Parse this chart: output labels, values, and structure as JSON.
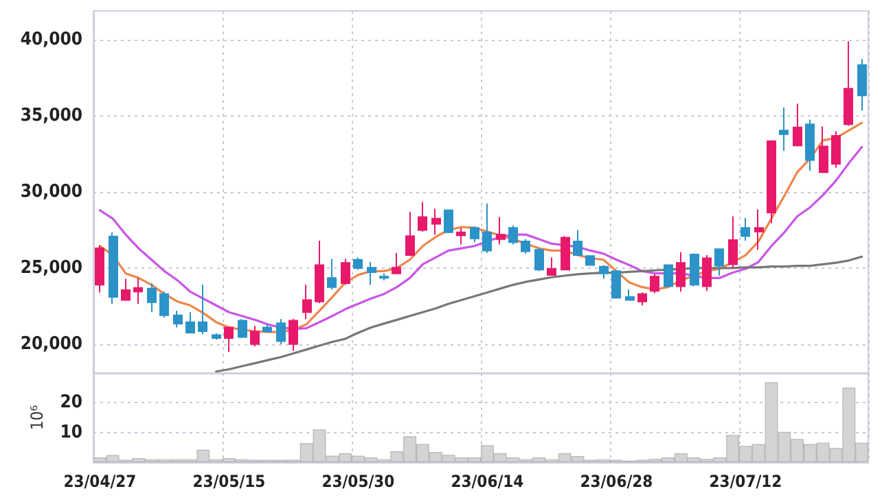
{
  "chart_data": [
    {
      "type": "candlestick",
      "categories": [
        null,
        null,
        null,
        null,
        null,
        null,
        null,
        null,
        null,
        null,
        null,
        null,
        null,
        null,
        null,
        null,
        null,
        null,
        null,
        null,
        null,
        null,
        null,
        null,
        null,
        null,
        null,
        null,
        null,
        null,
        null,
        null,
        null,
        null,
        null,
        null,
        null,
        null,
        null,
        null,
        null,
        null,
        null,
        null,
        null,
        null,
        null,
        null,
        null,
        null,
        null,
        null,
        null,
        null,
        null,
        null,
        null,
        null,
        null,
        null
      ],
      "ohlc": [
        [
          23900,
          26500,
          23400,
          26300
        ],
        [
          27080,
          27350,
          22650,
          23100
        ],
        [
          22900,
          24300,
          22900,
          23550
        ],
        [
          23450,
          24350,
          22650,
          23700
        ],
        [
          23650,
          24000,
          22100,
          22750
        ],
        [
          23300,
          23450,
          21750,
          21900
        ],
        [
          21900,
          22200,
          21100,
          21350
        ],
        [
          21450,
          22100,
          20700,
          20750
        ],
        [
          21450,
          23900,
          20650,
          20850
        ],
        [
          20600,
          20700,
          20300,
          20400
        ],
        [
          20400,
          21100,
          19500,
          21100
        ],
        [
          21550,
          21650,
          20400,
          20470
        ],
        [
          20000,
          21200,
          19850,
          20830
        ],
        [
          21100,
          21300,
          20800,
          20830
        ],
        [
          21380,
          21650,
          20000,
          20200
        ],
        [
          20000,
          21650,
          19550,
          21550
        ],
        [
          22100,
          23900,
          21650,
          22900
        ],
        [
          22800,
          26800,
          22700,
          25200
        ],
        [
          24350,
          25600,
          23600,
          23750
        ],
        [
          24000,
          25600,
          23900,
          25350
        ],
        [
          25550,
          25700,
          24900,
          25000
        ],
        [
          25030,
          25400,
          23900,
          24730
        ],
        [
          24450,
          24650,
          24200,
          24350
        ],
        [
          24650,
          26000,
          24600,
          25030
        ],
        [
          25850,
          28700,
          25800,
          27100
        ],
        [
          27500,
          29350,
          27400,
          28350
        ],
        [
          27900,
          28900,
          27200,
          28250
        ],
        [
          28800,
          28800,
          27300,
          27350
        ],
        [
          27150,
          27650,
          26550,
          27350
        ],
        [
          27650,
          27750,
          26700,
          26950
        ],
        [
          27350,
          29250,
          26000,
          26150
        ],
        [
          26900,
          28350,
          26550,
          27200
        ],
        [
          27650,
          27800,
          26550,
          26700
        ],
        [
          26750,
          26900,
          25950,
          26100
        ],
        [
          26200,
          26300,
          24800,
          24900
        ],
        [
          24550,
          25700,
          24500,
          24950
        ],
        [
          24900,
          27100,
          24850,
          27000
        ],
        [
          26750,
          27500,
          25800,
          25850
        ],
        [
          25800,
          25800,
          25200,
          25200
        ],
        [
          25100,
          25200,
          24300,
          24650
        ],
        [
          24800,
          24850,
          23000,
          23050
        ],
        [
          23100,
          23600,
          22850,
          22900
        ],
        [
          22800,
          23400,
          22550,
          23300
        ],
        [
          23500,
          24600,
          23350,
          24450
        ],
        [
          25200,
          25250,
          23750,
          23800
        ],
        [
          23800,
          26050,
          23450,
          25350
        ],
        [
          25900,
          25950,
          23800,
          23900
        ],
        [
          23800,
          25850,
          23500,
          25650
        ],
        [
          26250,
          26250,
          24500,
          25150
        ],
        [
          25250,
          28400,
          25000,
          26850
        ],
        [
          27650,
          28300,
          26800,
          27100
        ],
        [
          27400,
          28850,
          26200,
          27650
        ],
        [
          28650,
          33400,
          27950,
          33350
        ],
        [
          34050,
          35550,
          32700,
          33800
        ],
        [
          33050,
          35800,
          33000,
          34250
        ],
        [
          34450,
          34750,
          31400,
          32100
        ],
        [
          31300,
          34300,
          31250,
          33000
        ],
        [
          31850,
          34000,
          31600,
          33700
        ],
        [
          34450,
          39900,
          34350,
          36800
        ],
        [
          38350,
          38750,
          35350,
          36350
        ]
      ],
      "colors": [
        "#e8196b",
        "#2b93c8",
        "#e8196b",
        "#e8196b",
        "#2b93c8",
        "#2b93c8",
        "#2b93c8",
        "#2b93c8",
        "#2b93c8",
        "#2b93c8",
        "#e8196b",
        "#2b93c8",
        "#e8196b",
        "#2b93c8",
        "#2b93c8",
        "#e8196b",
        "#e8196b",
        "#e8196b",
        "#2b93c8",
        "#e8196b",
        "#2b93c8",
        "#2b93c8",
        "#2b93c8",
        "#e8196b",
        "#e8196b",
        "#e8196b",
        "#e8196b",
        "#2b93c8",
        "#e8196b",
        "#2b93c8",
        "#2b93c8",
        "#e8196b",
        "#2b93c8",
        "#2b93c8",
        "#2b93c8",
        "#e8196b",
        "#e8196b",
        "#2b93c8",
        "#2b93c8",
        "#2b93c8",
        "#2b93c8",
        "#2b93c8",
        "#e8196b",
        "#e8196b",
        "#2b93c8",
        "#e8196b",
        "#2b93c8",
        "#e8196b",
        "#2b93c8",
        "#e8196b",
        "#2b93c8",
        "#e8196b",
        "#e8196b",
        "#2b93c8",
        "#e8196b",
        "#2b93c8",
        "#e8196b",
        "#e8196b",
        "#e8196b",
        "#2b93c8"
      ],
      "series": [
        {
          "type": "line",
          "color": "#f0854a",
          "values": [
            26450,
            25850,
            24650,
            24350,
            23900,
            23300,
            22800,
            22550,
            22050,
            21450,
            21100,
            20950,
            20850,
            20800,
            20800,
            20950,
            21300,
            22200,
            23100,
            24050,
            24550,
            24800,
            24800,
            25000,
            25550,
            26450,
            27050,
            27500,
            27700,
            27650,
            27400,
            27150,
            26900,
            26600,
            26300,
            26150,
            26150,
            25850,
            25650,
            25550,
            24800,
            24050,
            23750,
            23600,
            23750,
            24200,
            24500,
            24800,
            24950,
            25400,
            25850,
            26750,
            28250,
            29750,
            31300,
            32200,
            33400,
            33550,
            34050,
            34550
          ]
        },
        {
          "type": "line",
          "color": "#c955e6",
          "values": [
            28800,
            28250,
            27200,
            26300,
            25550,
            24800,
            24200,
            23450,
            23000,
            22550,
            22100,
            21850,
            21600,
            21300,
            21100,
            21000,
            21050,
            21450,
            21850,
            22300,
            22650,
            23000,
            23300,
            23750,
            24350,
            25250,
            25700,
            26150,
            26300,
            26450,
            26750,
            27050,
            27200,
            27200,
            26900,
            26600,
            26500,
            26400,
            26150,
            25950,
            25550,
            25200,
            24800,
            24650,
            24650,
            24650,
            24500,
            24350,
            24350,
            24700,
            24950,
            25400,
            26450,
            27350,
            28400,
            29000,
            29800,
            30750,
            31900,
            32950
          ]
        },
        {
          "type": "line",
          "color": "#777777",
          "values": [
            null,
            null,
            null,
            null,
            null,
            null,
            null,
            null,
            null,
            18200,
            18350,
            18550,
            18750,
            18950,
            19150,
            19400,
            19650,
            19900,
            20150,
            20350,
            20750,
            21100,
            21350,
            21600,
            21850,
            22100,
            22350,
            22650,
            22900,
            23150,
            23400,
            23650,
            23900,
            24100,
            24250,
            24400,
            24500,
            24600,
            24650,
            24700,
            24700,
            24750,
            24800,
            24850,
            24900,
            24950,
            25000,
            25000,
            25000,
            25000,
            25050,
            25050,
            25100,
            25100,
            25150,
            25150,
            25250,
            25350,
            25500,
            25750
          ]
        }
      ],
      "ylim": [
        18100,
        41900
      ],
      "yticks": [
        {
          "value": 20000,
          "label": "20,000"
        },
        {
          "value": 25000,
          "label": "25,000"
        },
        {
          "value": 30000,
          "label": "30,000"
        },
        {
          "value": 35000,
          "label": "35,000"
        },
        {
          "value": 40000,
          "label": "40,000"
        }
      ],
      "grid": true,
      "marker": "none",
      "tick_labels": "y"
    },
    {
      "type": "bar",
      "categories": [
        "23/04/27",
        null,
        null,
        null,
        null,
        null,
        null,
        null,
        null,
        null,
        "23/05/15",
        null,
        null,
        null,
        null,
        null,
        null,
        null,
        null,
        null,
        "23/05/30",
        null,
        null,
        null,
        null,
        null,
        null,
        null,
        null,
        null,
        "23/06/14",
        null,
        null,
        null,
        null,
        null,
        null,
        null,
        null,
        null,
        "23/06/28",
        null,
        null,
        null,
        null,
        null,
        null,
        null,
        null,
        null,
        "23/07/12",
        null,
        null,
        null,
        null,
        null,
        null,
        null,
        null,
        null
      ],
      "values": [
        1.6,
        2.4,
        0.8,
        1.4,
        1.0,
        1.0,
        1.0,
        1.0,
        4.2,
        1.0,
        1.4,
        1.0,
        0.8,
        0.8,
        0.8,
        0.8,
        6.4,
        11,
        2.2,
        3.0,
        2.2,
        1.6,
        1.0,
        3.7,
        8.7,
        6.1,
        3.4,
        2.5,
        1.6,
        1.6,
        5.7,
        3.0,
        1.6,
        1.0,
        1.6,
        1.0,
        3.0,
        2.1,
        0.8,
        1.0,
        0.8,
        0.5,
        0.8,
        1.1,
        1.6,
        3.0,
        1.6,
        1.1,
        1.6,
        9.2,
        5.5,
        6.1,
        26.9,
        10.2,
        7.8,
        6.1,
        6.6,
        4.8,
        25.1,
        6.6
      ],
      "color": "#d4d4d4",
      "ylabel": "10⁶",
      "ylim": [
        0,
        30
      ],
      "yticks": [
        10,
        20
      ],
      "grid": true
    }
  ]
}
